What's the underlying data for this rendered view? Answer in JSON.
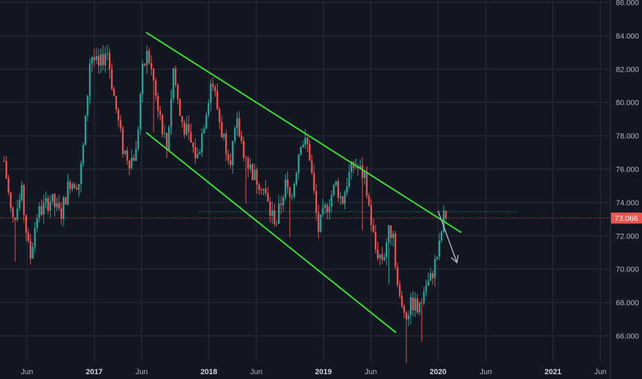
{
  "chart_data": {
    "type": "candlestick",
    "y_axis": {
      "min": 64.5,
      "max": 86.0,
      "ticks": [
        "86.000",
        "84.000",
        "82.000",
        "80.000",
        "78.000",
        "76.000",
        "74.000",
        "72.000",
        "70.000",
        "68.000",
        "66.000"
      ],
      "tick_values": [
        86,
        84,
        82,
        80,
        78,
        76,
        74,
        72,
        70,
        68,
        66
      ]
    },
    "x_axis": {
      "ticks": [
        {
          "label": "Jun",
          "date": "2016-06-01",
          "bold": false
        },
        {
          "label": "2017",
          "date": "2017-01-01",
          "bold": true
        },
        {
          "label": "Jun",
          "date": "2017-06-01",
          "bold": false
        },
        {
          "label": "2018",
          "date": "2018-01-01",
          "bold": true
        },
        {
          "label": "Jun",
          "date": "2018-06-01",
          "bold": false
        },
        {
          "label": "2019",
          "date": "2019-01-01",
          "bold": true
        },
        {
          "label": "Jun",
          "date": "2019-06-01",
          "bold": false
        },
        {
          "label": "2020",
          "date": "2020-01-01",
          "bold": true
        },
        {
          "label": "Jun",
          "date": "2020-06-01",
          "bold": false
        },
        {
          "label": "2021",
          "date": "2021-01-01",
          "bold": true
        },
        {
          "label": "Jun",
          "date": "2021-06-01",
          "bold": false
        }
      ]
    },
    "last_price": {
      "label": "73.066",
      "value": 73.066
    },
    "resistance_level": {
      "value": 73.45,
      "from": "2017-12-01",
      "to": "2020-09-10"
    },
    "channel_lines": [
      {
        "name": "upper",
        "from": {
          "date": "2017-06-15",
          "value": 84.2
        },
        "to": {
          "date": "2020-03-15",
          "value": 72.2
        }
      },
      {
        "name": "lower",
        "from": {
          "date": "2017-06-15",
          "value": 78.2
        },
        "to": {
          "date": "2019-08-20",
          "value": 66.2
        }
      }
    ],
    "arrow": {
      "from": {
        "date": "2020-01-01",
        "value": 73.5
      },
      "to": {
        "date": "2020-03-01",
        "value": 70.4
      }
    },
    "colors": {
      "background": "#131722",
      "grid": "#2a2e39",
      "up": "#26a69a",
      "down": "#ef5350",
      "channel": "#37e831",
      "arrow": "#b2b5be",
      "resistance": "#26a69a",
      "price_line": "#ef5350",
      "price_tag": "#ef5350"
    },
    "anchors": [
      [
        "2016-03-20",
        76.5
      ],
      [
        "2016-04-15",
        72.8
      ],
      [
        "2016-05-15",
        74.5
      ],
      [
        "2016-06-10",
        70.5
      ],
      [
        "2016-07-01",
        73.2
      ],
      [
        "2016-08-15",
        74.2
      ],
      [
        "2016-09-15",
        73.2
      ],
      [
        "2016-10-15",
        75.3
      ],
      [
        "2016-11-15",
        75.2
      ],
      [
        "2016-12-01",
        78.0
      ],
      [
        "2016-12-20",
        83.0
      ],
      [
        "2017-01-15",
        82.0
      ],
      [
        "2017-02-10",
        83.3
      ],
      [
        "2017-03-01",
        80.8
      ],
      [
        "2017-04-01",
        77.3
      ],
      [
        "2017-04-25",
        76.5
      ],
      [
        "2017-05-15",
        77.0
      ],
      [
        "2017-06-01",
        81.6
      ],
      [
        "2017-06-20",
        83.0
      ],
      [
        "2017-07-20",
        80.2
      ],
      [
        "2017-08-20",
        77.2
      ],
      [
        "2017-09-10",
        82.0
      ],
      [
        "2017-10-01",
        79.2
      ],
      [
        "2017-11-01",
        77.7
      ],
      [
        "2017-11-25",
        76.6
      ],
      [
        "2017-12-20",
        79.2
      ],
      [
        "2018-01-10",
        81.5
      ],
      [
        "2018-02-10",
        78.3
      ],
      [
        "2018-03-10",
        76.7
      ],
      [
        "2018-04-01",
        78.6
      ],
      [
        "2018-05-01",
        76.5
      ],
      [
        "2018-05-25",
        75.6
      ],
      [
        "2018-06-20",
        75.1
      ],
      [
        "2018-07-15",
        73.4
      ],
      [
        "2018-08-05",
        72.9
      ],
      [
        "2018-09-01",
        75.1
      ],
      [
        "2018-09-20",
        74.0
      ],
      [
        "2018-10-20",
        77.8
      ],
      [
        "2018-11-15",
        77.3
      ],
      [
        "2018-12-15",
        72.3
      ],
      [
        "2019-01-05",
        73.5
      ],
      [
        "2019-02-10",
        75.1
      ],
      [
        "2019-03-01",
        74.0
      ],
      [
        "2019-03-20",
        75.5
      ],
      [
        "2019-04-10",
        76.3
      ],
      [
        "2019-05-10",
        75.6
      ],
      [
        "2019-05-25",
        73.9
      ],
      [
        "2019-06-15",
        71.2
      ],
      [
        "2019-07-10",
        70.6
      ],
      [
        "2019-07-25",
        72.1
      ],
      [
        "2019-08-10",
        72.4
      ],
      [
        "2019-08-25",
        69.0
      ],
      [
        "2019-09-05",
        67.6
      ],
      [
        "2019-09-25",
        67.5
      ],
      [
        "2019-10-15",
        68.0
      ],
      [
        "2019-11-01",
        67.4
      ],
      [
        "2019-11-20",
        69.0
      ],
      [
        "2019-12-05",
        69.2
      ],
      [
        "2019-12-20",
        70.2
      ],
      [
        "2020-01-05",
        71.3
      ],
      [
        "2020-01-15",
        72.7
      ],
      [
        "2020-01-22",
        73.4
      ],
      [
        "2020-01-29",
        73.07
      ]
    ]
  }
}
